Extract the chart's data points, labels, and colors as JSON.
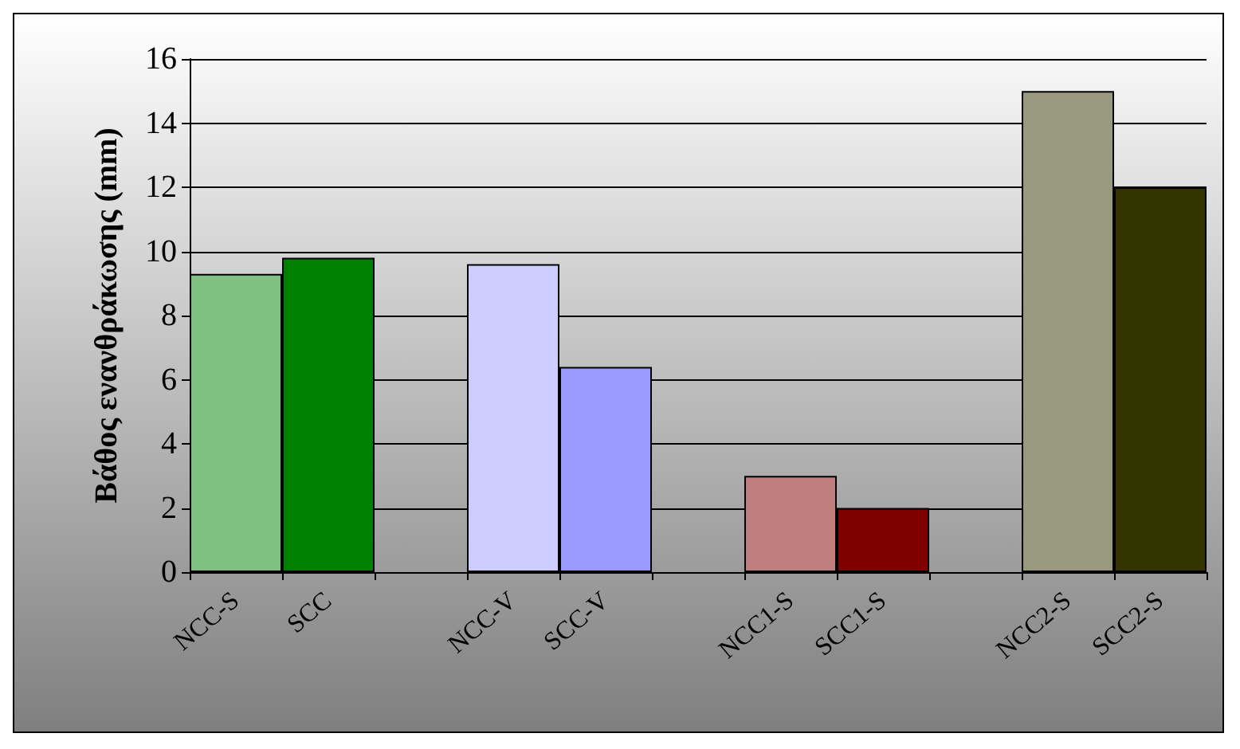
{
  "chart_data": {
    "type": "bar",
    "ylabel": "Βάθος ενανθράκωσης (mm)",
    "categories": [
      "NCC-S",
      "SCC",
      null,
      "NCC-V",
      "SCC-V",
      null,
      "NCC1-S",
      "SCC1-S",
      null,
      "NCC2-S",
      "SCC2-S"
    ],
    "values": [
      9.3,
      9.8,
      null,
      9.6,
      6.4,
      null,
      3.0,
      2.0,
      null,
      15.0,
      12.0
    ],
    "colors": [
      "#7fbf7f",
      "#008000",
      null,
      "#ccccff",
      "#9999ff",
      null,
      "#bf7f7f",
      "#800000",
      null,
      "#99997f",
      "#333300"
    ],
    "ylim": [
      0,
      16
    ],
    "yticks": [
      0,
      2,
      4,
      6,
      8,
      10,
      12,
      14,
      16
    ],
    "grid": "y"
  }
}
